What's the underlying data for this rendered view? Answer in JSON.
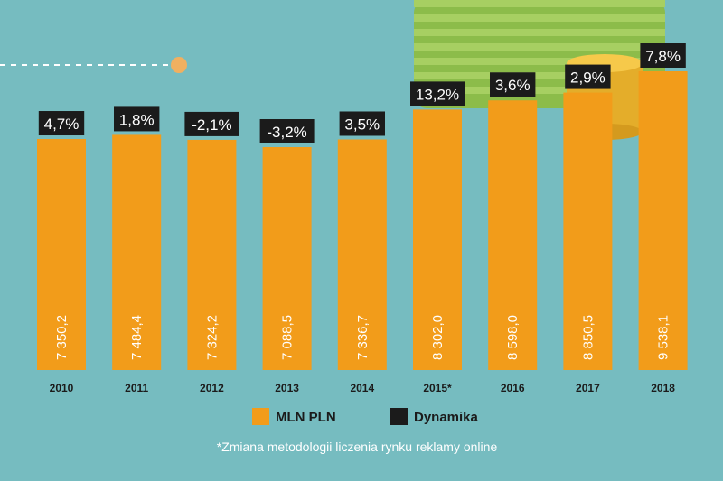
{
  "chart_data": {
    "type": "bar",
    "categories": [
      "2010",
      "2011",
      "2012",
      "2013",
      "2014",
      "2015*",
      "2016",
      "2017",
      "2018"
    ],
    "series": [
      {
        "name": "MLN PLN",
        "values": [
          7350.2,
          7484.4,
          7324.2,
          7088.5,
          7336.7,
          8302.0,
          8598.0,
          8850.5,
          9538.1
        ]
      },
      {
        "name": "Dynamika",
        "values": [
          4.7,
          1.8,
          -2.1,
          -3.2,
          3.5,
          13.2,
          3.6,
          2.9,
          7.8
        ]
      }
    ],
    "value_labels": [
      "7 350,2",
      "7 484,4",
      "7 324,2",
      "7 088,5",
      "7 336,7",
      "8 302,0",
      "8 598,0",
      "8 850,5",
      "9 538,1"
    ],
    "dynamics_labels": [
      "4,7%",
      "1,8%",
      "-2,1%",
      "-3,2%",
      "3,5%",
      "13,2%",
      "3,6%",
      "2,9%",
      "7,8%"
    ],
    "legend": [
      {
        "label": "MLN PLN",
        "color": "#f29c1a"
      },
      {
        "label": "Dynamika",
        "color": "#1b1b1b"
      }
    ],
    "footnote": "*Zmiana metodologii liczenia rynku reklamy online",
    "colors": {
      "bar": "#f29c1a",
      "badge": "#1b1b1b",
      "background": "#76bcc0"
    }
  }
}
